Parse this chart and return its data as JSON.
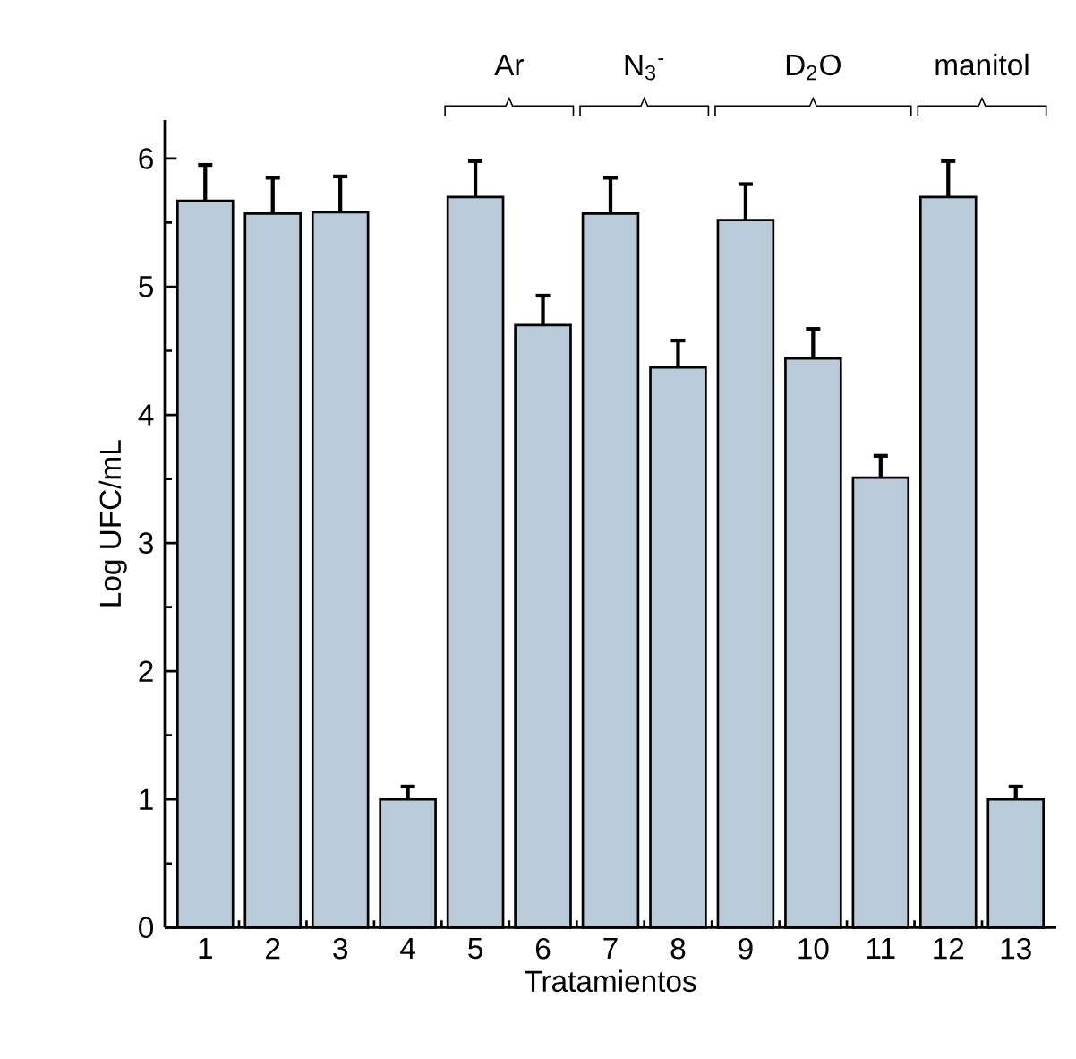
{
  "chart_data": {
    "type": "bar",
    "xlabel": "Tratamientos",
    "ylabel": "Log UFC/mL",
    "categories": [
      "1",
      "2",
      "3",
      "4",
      "5",
      "6",
      "7",
      "8",
      "9",
      "10",
      "11",
      "12",
      "13"
    ],
    "values": [
      5.67,
      5.57,
      5.58,
      1.0,
      5.7,
      4.7,
      5.57,
      4.37,
      5.52,
      4.44,
      3.51,
      5.7,
      1.0
    ],
    "errors": [
      0.28,
      0.28,
      0.28,
      0.1,
      0.28,
      0.23,
      0.28,
      0.21,
      0.28,
      0.23,
      0.17,
      0.28,
      0.1
    ],
    "color": "#b9cad8",
    "ylim": [
      0,
      6.3
    ],
    "yticks": [
      0,
      1,
      2,
      3,
      4,
      5,
      6
    ],
    "grid": false,
    "annotations": [
      "Ar",
      "N$_{3}$$^{-}$",
      "D$_{2}$O",
      "manitol"
    ]
  }
}
